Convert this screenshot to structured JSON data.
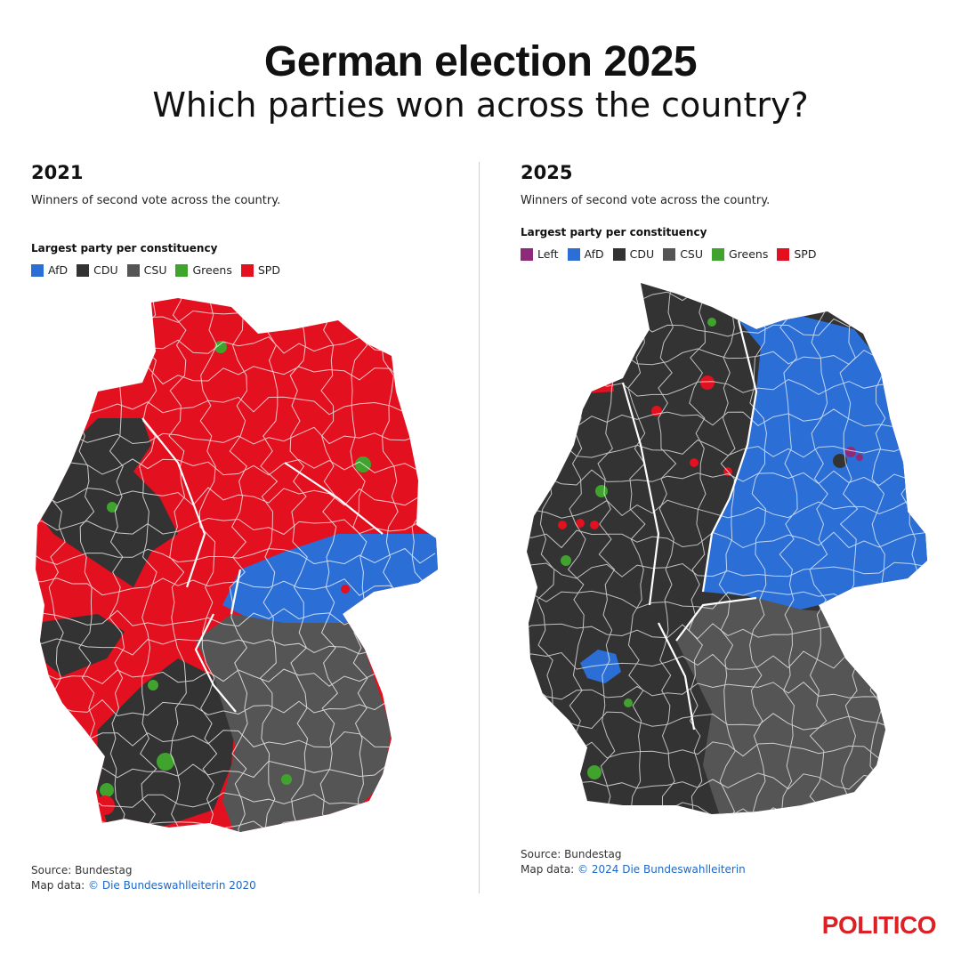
{
  "header": {
    "title": "German election 2025",
    "subtitle": "Which parties won across the country?"
  },
  "colors": {
    "Left": "#8e2a7a",
    "AfD": "#2b6fd6",
    "CDU": "#333333",
    "CSU": "#555555",
    "Greens": "#3fa32e",
    "SPD": "#e3101f",
    "border": "#ffffff",
    "brand": "#dd1f26"
  },
  "panels": [
    {
      "year": "2021",
      "description": "Winners of second vote across the country.",
      "legend_title": "Largest party per constituency",
      "legend": [
        {
          "party": "AfD",
          "label": "AfD"
        },
        {
          "party": "CDU",
          "label": "CDU"
        },
        {
          "party": "CSU",
          "label": "CSU"
        },
        {
          "party": "Greens",
          "label": "Greens"
        },
        {
          "party": "SPD",
          "label": "SPD"
        }
      ],
      "source": "Source: Bundestag",
      "map_data_label": "Map data: ",
      "map_data_link": "© Die Bundeswahlleiterin 2020",
      "regions_by_party": {
        "north_and_centre": "SPD",
        "east_saxony_thuringia": "AfD",
        "west_rhineland": "CDU",
        "baden_wuerttemberg": "CDU",
        "bavaria": "CSU",
        "city_pockets": "Greens"
      }
    },
    {
      "year": "2025",
      "description": "Winners of second vote across the country.",
      "legend_title": "Largest party per constituency",
      "legend": [
        {
          "party": "Left",
          "label": "Left"
        },
        {
          "party": "AfD",
          "label": "AfD"
        },
        {
          "party": "CDU",
          "label": "CDU"
        },
        {
          "party": "CSU",
          "label": "CSU"
        },
        {
          "party": "Greens",
          "label": "Greens"
        },
        {
          "party": "SPD",
          "label": "SPD"
        }
      ],
      "source": "Source: Bundestag",
      "map_data_label": "Map data: ",
      "map_data_link": "© 2024 Die Bundeswahlleiterin",
      "regions_by_party": {
        "west_and_north": "CDU",
        "east": "AfD",
        "bavaria": "CSU",
        "ruhr_and_city_pockets": "SPD",
        "berlin_core": "Left",
        "city_pockets": "Greens"
      }
    }
  ],
  "brand": {
    "logo": "POLITICO"
  }
}
